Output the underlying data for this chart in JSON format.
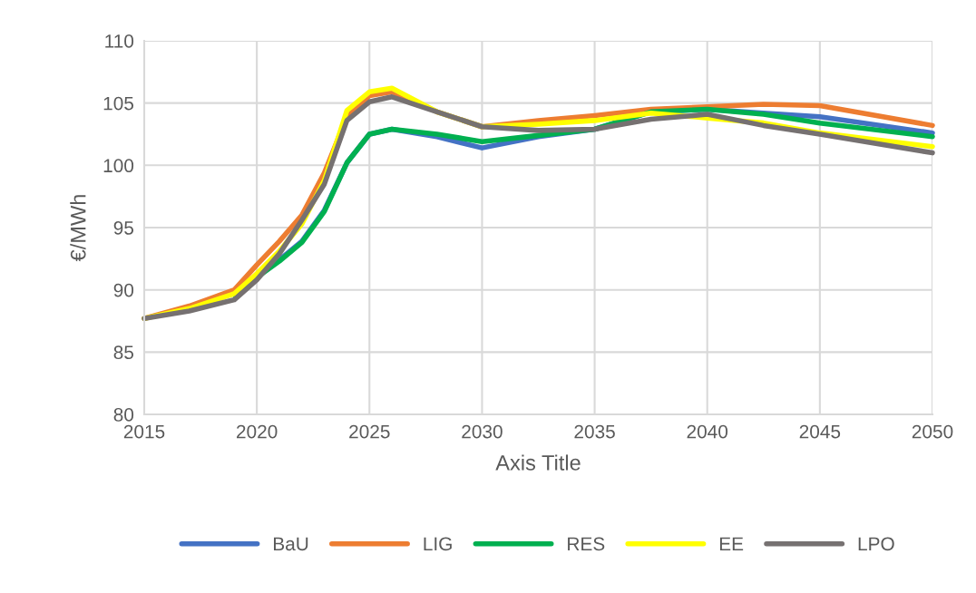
{
  "chart_data": {
    "type": "line",
    "xlabel": "Axis Title",
    "ylabel": "€/MWh",
    "x": [
      2015,
      2017,
      2019,
      2020,
      2021,
      2022,
      2023,
      2024,
      2025,
      2026,
      2028,
      2030,
      2032.5,
      2035,
      2037.5,
      2040,
      2042.5,
      2045,
      2050
    ],
    "series": [
      {
        "name": "BaU",
        "color": "#4472c4",
        "values": [
          null,
          null,
          null,
          91.2,
          92.4,
          93.9,
          96.4,
          100.2,
          102.5,
          102.9,
          102.3,
          101.4,
          102.3,
          102.9,
          104.3,
          104.5,
          104.2,
          103.9,
          102.6
        ]
      },
      {
        "name": "LIG",
        "color": "#ed7d31",
        "values": [
          87.7,
          88.7,
          90.0,
          92.0,
          93.9,
          96.0,
          99.4,
          103.9,
          105.6,
          105.9,
          104.3,
          103.1,
          103.6,
          104.0,
          104.5,
          104.7,
          104.9,
          104.8,
          103.2
        ]
      },
      {
        "name": "RES",
        "color": "#00b050",
        "values": [
          null,
          null,
          89.6,
          91.0,
          92.3,
          93.8,
          96.3,
          100.2,
          102.5,
          102.9,
          102.5,
          101.9,
          102.4,
          102.9,
          104.3,
          104.5,
          104.1,
          103.4,
          102.3
        ]
      },
      {
        "name": "EE",
        "color": "#ffff00",
        "values": [
          87.7,
          88.5,
          89.7,
          91.3,
          93.1,
          95.3,
          98.8,
          104.4,
          105.9,
          106.2,
          104.3,
          103.1,
          103.3,
          103.6,
          104.2,
          103.8,
          103.4,
          102.6,
          101.5
        ]
      },
      {
        "name": "LPO",
        "color": "#767171",
        "values": [
          87.7,
          88.3,
          89.2,
          90.8,
          92.9,
          95.6,
          98.5,
          103.6,
          105.1,
          105.5,
          104.3,
          103.1,
          102.8,
          102.9,
          103.7,
          104.1,
          103.2,
          102.5,
          101.0
        ]
      }
    ],
    "xlim": [
      2015,
      2050
    ],
    "xticks": [
      2015,
      2020,
      2025,
      2030,
      2035,
      2040,
      2045,
      2050
    ],
    "ylim": [
      80,
      110
    ],
    "yticks": [
      80,
      85,
      90,
      95,
      100,
      105,
      110
    ],
    "grid": true,
    "legend": "bottom",
    "marker": "none",
    "line_style": "solid"
  }
}
